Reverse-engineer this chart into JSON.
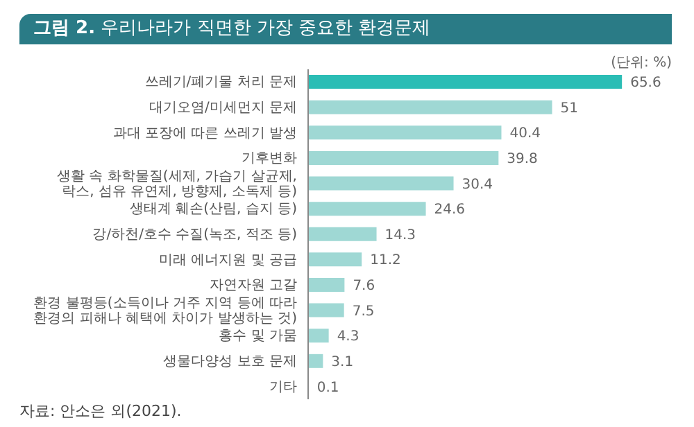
{
  "chart_data": {
    "type": "bar",
    "orientation": "horizontal",
    "title": "그림 2. 우리나라가 직면한 가장 중요한 환경문제",
    "annotations": [
      "(단위: %)",
      "자료: 안소은 외(2021)."
    ],
    "categories": [
      "쓰레기/폐기물 처리 문제",
      "대기오염/미세먼지 문제",
      "과대 포장에 따른 쓰레기 발생",
      "기후변화",
      "생활 속 화학물질(세제, 가습기 살균제,\n락스, 섬유 유연제, 방향제, 소독제 등)",
      "생태계 훼손(산림, 습지 등)",
      "강/하천/호수 수질(녹조, 적조 등)",
      "미래 에너지원 및 공급",
      "자연자원 고갈",
      "환경 불평등(소득이나 거주 지역 등에 따라\n환경의 피해나 혜택에 차이가 발생하는 것)",
      "홍수 및 가뭄",
      "생물다양성 보호 문제",
      "기타"
    ],
    "values": [
      65.6,
      51,
      40.4,
      39.8,
      30.4,
      24.6,
      14.3,
      11.2,
      7.6,
      7.5,
      4.3,
      3.1,
      0.1
    ],
    "colors": [
      "#2bbdb5",
      "#9fd8d4",
      "#9fd8d4",
      "#9fd8d4",
      "#9fd8d4",
      "#9fd8d4",
      "#9fd8d4",
      "#9fd8d4",
      "#9fd8d4",
      "#9fd8d4",
      "#9fd8d4",
      "#9fd8d4",
      "#9fd8d4"
    ],
    "data_labels": true
  }
}
